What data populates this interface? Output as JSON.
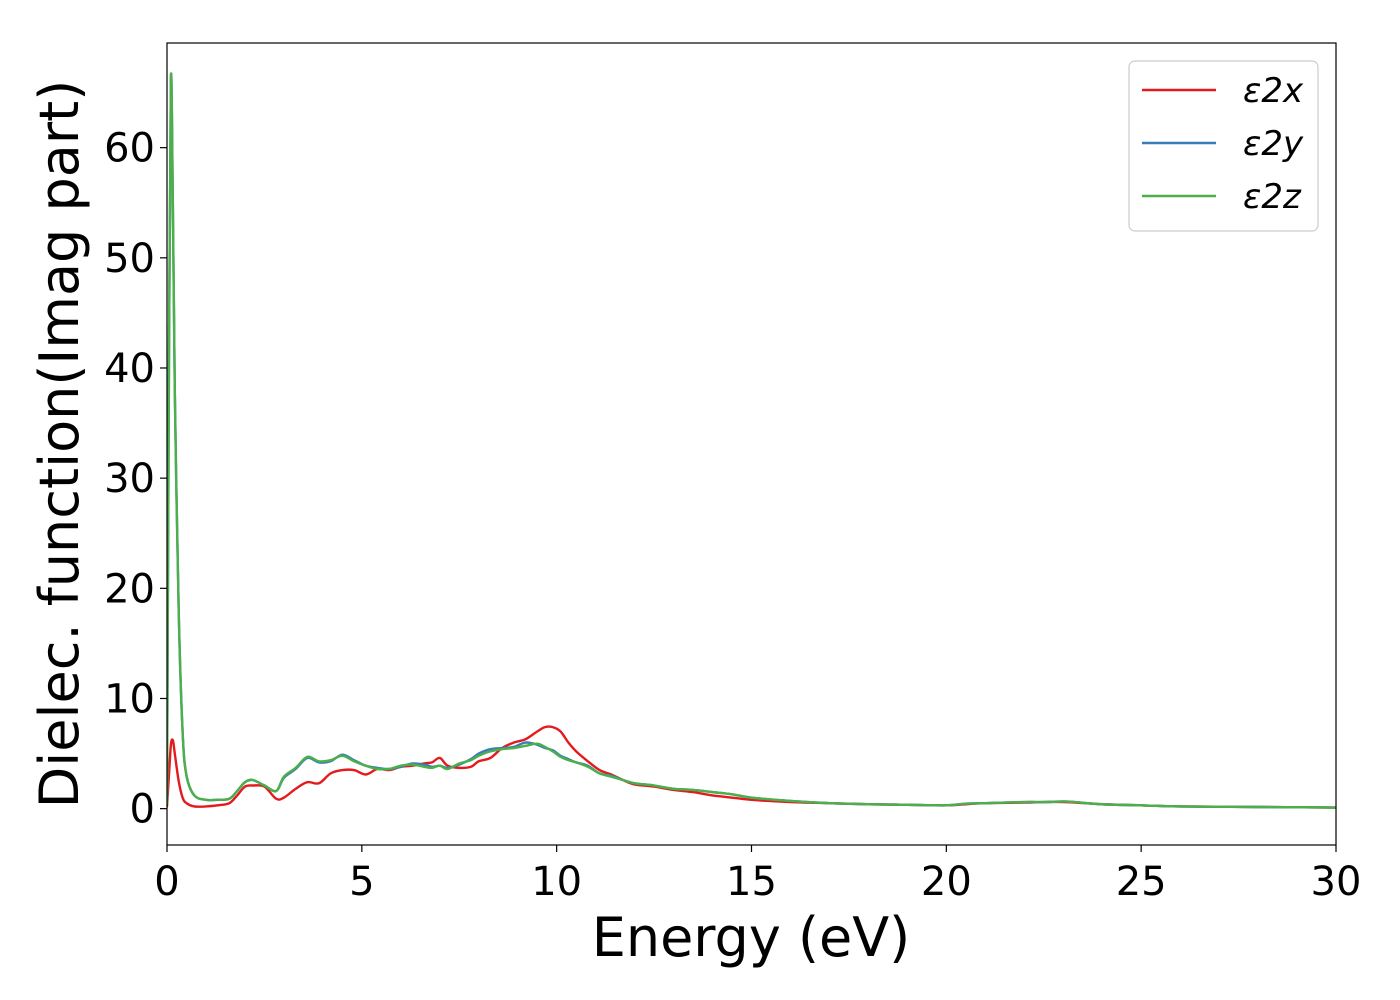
{
  "chart_data": {
    "type": "line",
    "xlabel": "Energy (eV)",
    "ylabel": "Dielec. function(Imag part)",
    "xlim": [
      0,
      30
    ],
    "ylim": [
      -3.3,
      69.5
    ],
    "xticks": [
      0,
      5,
      10,
      15,
      20,
      25,
      30
    ],
    "yticks": [
      0,
      10,
      20,
      30,
      40,
      50,
      60
    ],
    "grid": false,
    "legend_position": "top-right",
    "series": [
      {
        "name": "ε2x",
        "color": "#e41a1c",
        "x": [
          0,
          0.05,
          0.1,
          0.15,
          0.2,
          0.3,
          0.4,
          0.5,
          0.7,
          1.0,
          1.3,
          1.6,
          1.8,
          2.0,
          2.2,
          2.5,
          2.8,
          3.0,
          3.3,
          3.6,
          3.9,
          4.2,
          4.5,
          4.8,
          5.1,
          5.4,
          5.7,
          6.0,
          6.3,
          6.6,
          6.8,
          7.0,
          7.2,
          7.5,
          7.8,
          8.0,
          8.3,
          8.6,
          8.9,
          9.2,
          9.5,
          9.7,
          9.9,
          10.1,
          10.3,
          10.5,
          10.8,
          11.1,
          11.4,
          11.7,
          12.0,
          12.5,
          13.0,
          13.5,
          14.0,
          14.5,
          15.0,
          16.0,
          17.0,
          18.0,
          19.0,
          20.0,
          20.5,
          21.0,
          22.0,
          22.5,
          23.0,
          23.3,
          24.0,
          25.0,
          26.0,
          28.0,
          30.0
        ],
        "values": [
          0.2,
          3.0,
          5.8,
          6.2,
          5.0,
          2.5,
          1.0,
          0.5,
          0.2,
          0.2,
          0.3,
          0.5,
          1.2,
          2.0,
          2.1,
          2.0,
          0.9,
          1.0,
          1.8,
          2.4,
          2.3,
          3.2,
          3.5,
          3.5,
          3.1,
          3.6,
          3.5,
          3.8,
          3.9,
          4.1,
          4.2,
          4.6,
          3.9,
          3.7,
          3.8,
          4.3,
          4.6,
          5.5,
          6.0,
          6.3,
          7.0,
          7.4,
          7.4,
          7.0,
          6.0,
          5.2,
          4.3,
          3.5,
          3.1,
          2.6,
          2.2,
          2.0,
          1.7,
          1.5,
          1.2,
          1.0,
          0.8,
          0.6,
          0.5,
          0.4,
          0.35,
          0.3,
          0.4,
          0.5,
          0.55,
          0.6,
          0.6,
          0.55,
          0.4,
          0.3,
          0.2,
          0.15,
          0.1
        ]
      },
      {
        "name": "ε2y",
        "color": "#377eb8",
        "x": [
          0,
          0.05,
          0.1,
          0.15,
          0.2,
          0.3,
          0.4,
          0.5,
          0.7,
          1.0,
          1.3,
          1.6,
          1.8,
          2.0,
          2.2,
          2.5,
          2.8,
          3.0,
          3.3,
          3.6,
          3.9,
          4.2,
          4.5,
          4.8,
          5.1,
          5.4,
          5.7,
          6.0,
          6.3,
          6.6,
          6.8,
          7.0,
          7.2,
          7.5,
          7.8,
          8.0,
          8.3,
          8.6,
          8.9,
          9.2,
          9.5,
          9.7,
          9.9,
          10.1,
          10.3,
          10.5,
          10.8,
          11.1,
          11.4,
          11.7,
          12.0,
          12.5,
          13.0,
          13.5,
          14.0,
          14.5,
          15.0,
          16.0,
          17.0,
          18.0,
          19.0,
          20.0,
          20.5,
          21.0,
          22.0,
          22.5,
          23.0,
          23.3,
          24.0,
          25.0,
          26.0,
          28.0,
          30.0
        ],
        "values": [
          0.5,
          40.0,
          66.3,
          55.0,
          38.0,
          18.0,
          7.0,
          3.0,
          1.2,
          0.8,
          0.8,
          0.9,
          1.6,
          2.4,
          2.6,
          2.1,
          1.6,
          2.8,
          3.6,
          4.6,
          4.2,
          4.3,
          4.9,
          4.4,
          3.9,
          3.7,
          3.6,
          3.8,
          4.1,
          4.0,
          3.8,
          3.9,
          3.7,
          4.0,
          4.5,
          5.0,
          5.4,
          5.5,
          5.6,
          6.0,
          5.8,
          5.5,
          5.3,
          4.8,
          4.5,
          4.2,
          3.9,
          3.2,
          3.0,
          2.6,
          2.3,
          2.1,
          1.8,
          1.7,
          1.5,
          1.3,
          1.0,
          0.7,
          0.5,
          0.4,
          0.35,
          0.3,
          0.45,
          0.5,
          0.6,
          0.6,
          0.65,
          0.6,
          0.4,
          0.3,
          0.2,
          0.15,
          0.1
        ]
      },
      {
        "name": "ε2z",
        "color": "#4daf4a",
        "x": [
          0,
          0.05,
          0.1,
          0.15,
          0.2,
          0.3,
          0.4,
          0.5,
          0.7,
          1.0,
          1.3,
          1.6,
          1.8,
          2.0,
          2.2,
          2.5,
          2.8,
          3.0,
          3.3,
          3.6,
          3.9,
          4.2,
          4.5,
          4.8,
          5.1,
          5.4,
          5.7,
          6.0,
          6.3,
          6.6,
          6.8,
          7.0,
          7.2,
          7.5,
          7.8,
          8.0,
          8.3,
          8.6,
          8.9,
          9.2,
          9.5,
          9.7,
          9.9,
          10.1,
          10.3,
          10.5,
          10.8,
          11.1,
          11.4,
          11.7,
          12.0,
          12.5,
          13.0,
          13.5,
          14.0,
          14.5,
          15.0,
          16.0,
          17.0,
          18.0,
          19.0,
          20.0,
          20.5,
          21.0,
          22.0,
          22.5,
          23.0,
          23.3,
          24.0,
          25.0,
          26.0,
          28.0,
          30.0
        ],
        "values": [
          0.5,
          40.0,
          66.3,
          55.0,
          38.0,
          18.0,
          7.0,
          3.0,
          1.2,
          0.8,
          0.8,
          0.9,
          1.6,
          2.4,
          2.6,
          2.1,
          1.6,
          2.9,
          3.7,
          4.7,
          4.3,
          4.4,
          4.8,
          4.3,
          3.9,
          3.6,
          3.6,
          3.9,
          4.0,
          3.8,
          3.7,
          3.9,
          3.6,
          4.1,
          4.4,
          4.8,
          5.2,
          5.4,
          5.5,
          5.7,
          5.9,
          5.6,
          5.2,
          4.7,
          4.4,
          4.2,
          3.8,
          3.2,
          2.9,
          2.6,
          2.3,
          2.1,
          1.8,
          1.7,
          1.5,
          1.3,
          1.0,
          0.7,
          0.5,
          0.4,
          0.35,
          0.3,
          0.45,
          0.5,
          0.6,
          0.6,
          0.65,
          0.6,
          0.4,
          0.3,
          0.2,
          0.15,
          0.1
        ]
      }
    ]
  }
}
